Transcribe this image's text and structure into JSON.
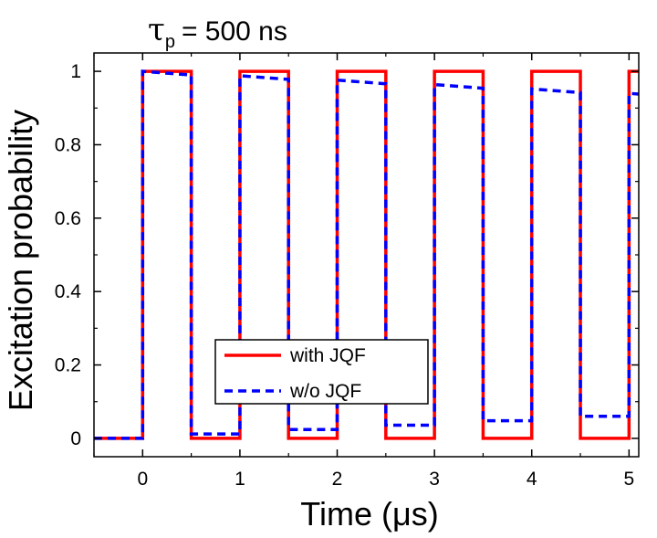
{
  "chart_data": {
    "type": "line",
    "title": "τp = 500 ns",
    "title_symbol": "τ",
    "title_subscript": "p",
    "title_value": "= 500 ns",
    "xlabel": "Time (μs)",
    "ylabel": "Excitation probability",
    "xlim": [
      -0.5,
      5.1
    ],
    "ylim": [
      -0.05,
      1.05
    ],
    "xticks": [
      0,
      1,
      2,
      3,
      4,
      5
    ],
    "xtick_labels": [
      "0",
      "1",
      "2",
      "3",
      "4",
      "5"
    ],
    "yticks": [
      0,
      0.2,
      0.4,
      0.6,
      0.8,
      1
    ],
    "ytick_labels": [
      "0",
      "0.2",
      "0.4",
      "0.6",
      "0.8",
      "1"
    ],
    "grid": false,
    "legend_position": "lower-center",
    "series": [
      {
        "name": "with JQF",
        "color": "#ff0000",
        "style": "solid",
        "x": [
          -0.5,
          0,
          0,
          0.5,
          0.5,
          1,
          1,
          1.5,
          1.5,
          2,
          2,
          2.5,
          2.5,
          3,
          3,
          3.5,
          3.5,
          4,
          4,
          4.5,
          4.5,
          5,
          5,
          5.1
        ],
        "y": [
          0,
          0,
          1,
          1,
          0,
          0,
          1,
          1,
          0,
          0,
          1,
          1,
          0,
          0,
          1,
          1,
          0,
          0,
          1,
          1,
          0,
          0,
          1,
          1
        ]
      },
      {
        "name": "w/o JQF",
        "color": "#0000ff",
        "style": "dashed",
        "x": [
          -0.5,
          0,
          0,
          0.5,
          0.5,
          1,
          1,
          1.5,
          1.5,
          2,
          2,
          2.5,
          2.5,
          3,
          3,
          3.5,
          3.5,
          4,
          4,
          4.5,
          4.5,
          5,
          5,
          5.1
        ],
        "y": [
          0,
          0,
          1,
          0.99,
          0.012,
          0.012,
          0.988,
          0.978,
          0.024,
          0.024,
          0.976,
          0.966,
          0.036,
          0.036,
          0.964,
          0.954,
          0.048,
          0.048,
          0.952,
          0.942,
          0.06,
          0.06,
          0.94,
          0.938
        ]
      }
    ]
  }
}
